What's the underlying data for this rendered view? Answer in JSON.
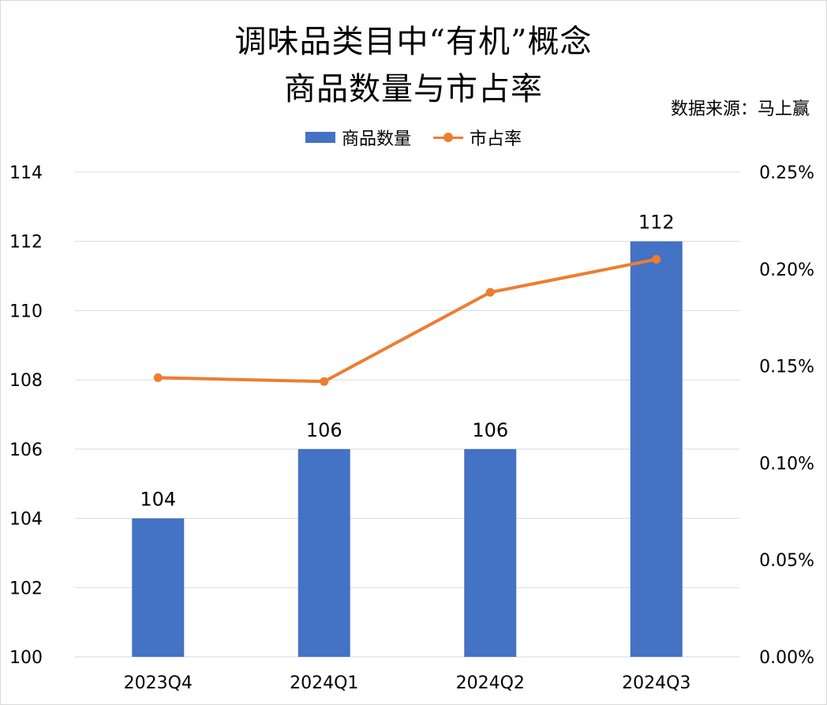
{
  "title_line1": "调味品类目中“有机”概念",
  "title_line2": "商品数量与市占率",
  "source": "数据来源：马上赢",
  "colors": {
    "bar": "#4472c4",
    "line": "#ed7d31",
    "grid": "#d9d9d9"
  },
  "chart_data": {
    "type": "bar+line",
    "categories": [
      "2023Q4",
      "2024Q1",
      "2024Q2",
      "2024Q3"
    ],
    "series": [
      {
        "name": "商品数量",
        "type": "bar",
        "axis": "left",
        "values": [
          104,
          106,
          106,
          112
        ],
        "data_labels": [
          "104",
          "106",
          "106",
          "112"
        ]
      },
      {
        "name": "市占率",
        "type": "line",
        "axis": "right",
        "values": [
          0.144,
          0.142,
          0.188,
          0.205
        ]
      }
    ],
    "y_left": {
      "min": 100,
      "max": 114,
      "ticks": [
        100,
        102,
        104,
        106,
        108,
        110,
        112,
        114
      ]
    },
    "y_right": {
      "min": 0,
      "max": 0.25,
      "ticks": [
        "0.00%",
        "0.05%",
        "0.10%",
        "0.15%",
        "0.20%",
        "0.25%"
      ]
    },
    "grid": true,
    "legend_position": "top-center"
  }
}
